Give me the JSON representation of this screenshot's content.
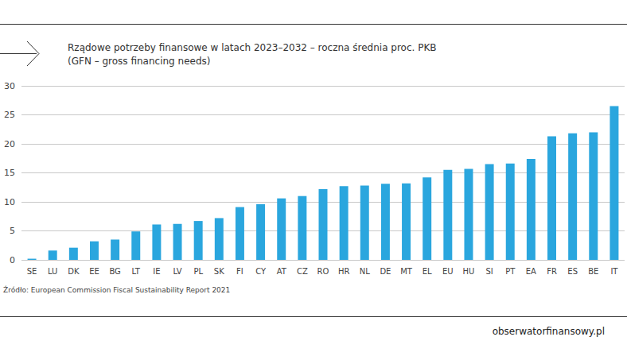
{
  "chart_data": {
    "type": "bar",
    "title": "Rządowe potrzeby finansowe w latach 2023–2032 – roczna średnia proc. PKB",
    "subtitle": "(GFN – gross financing needs)",
    "categories": [
      "SE",
      "LU",
      "DK",
      "EE",
      "BG",
      "LT",
      "IE",
      "LV",
      "PL",
      "SK",
      "FI",
      "CY",
      "AT",
      "CZ",
      "RO",
      "HR",
      "NL",
      "DE",
      "MT",
      "EL",
      "EU",
      "HU",
      "SI",
      "PT",
      "EA",
      "FR",
      "ES",
      "BE",
      "IT"
    ],
    "values": [
      0.2,
      1.6,
      2.1,
      3.2,
      3.5,
      4.9,
      6.1,
      6.2,
      6.7,
      7.2,
      9.1,
      9.6,
      10.6,
      11.0,
      12.2,
      12.7,
      12.8,
      13.1,
      13.2,
      14.2,
      15.5,
      15.7,
      16.5,
      16.6,
      17.4,
      21.3,
      21.8,
      22.0,
      26.5
    ],
    "color": "#2aa6de",
    "ylim": [
      0,
      30
    ],
    "yticks": [
      0,
      5,
      10,
      15,
      20,
      25,
      30
    ],
    "grid": true,
    "annotations": [
      "Źródło: European Commission Fiscal Sustainability Report 2021",
      "obserwatorfinansowy.pl"
    ]
  }
}
